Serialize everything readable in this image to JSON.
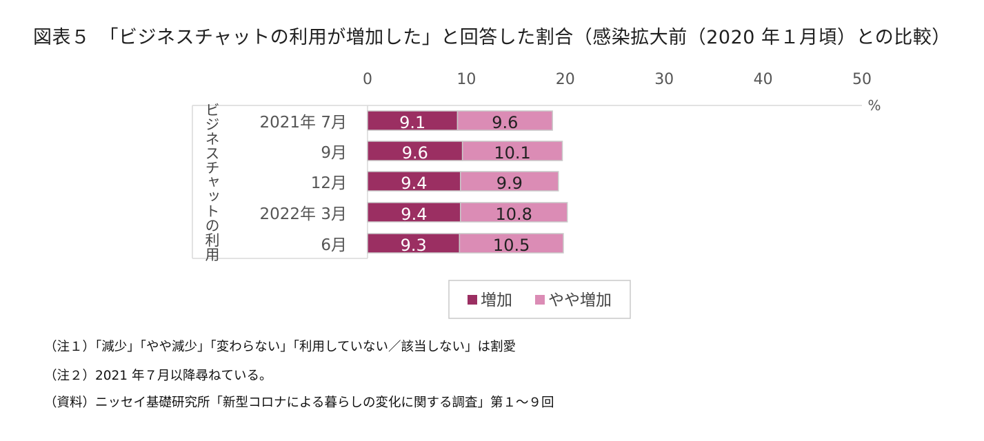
{
  "title": "図表５　「ビジネスチャットの利用が増加した」と回答した割合（感染拡大前（2020 年１月頃）との比較）",
  "notes": [
    "（注１）「減少」「やや減少」「変わらない」「利用していない／該当しない」は割愛",
    "（注２）2021 年７月以降尋ねている。",
    "（資料）ニッセイ基礎研究所「新型コロナによる暮らしの変化に関する調査」第１～９回"
  ],
  "chart_data": {
    "type": "bar",
    "orientation": "horizontal",
    "stacked": true,
    "group_label": "ビジネスチャットの利用",
    "categories": [
      "2021年 7月",
      "9月",
      "12月",
      "2022年 3月",
      "6月"
    ],
    "series": [
      {
        "name": "増加",
        "color": "#9b2f62",
        "values": [
          9.1,
          9.6,
          9.4,
          9.4,
          9.3
        ]
      },
      {
        "name": "やや増加",
        "color": "#db8cb5",
        "values": [
          9.6,
          10.1,
          9.9,
          10.8,
          10.5
        ]
      }
    ],
    "axis": {
      "xlim": [
        0,
        50
      ],
      "ticks": [
        "0",
        "10",
        "20",
        "30",
        "40",
        "50"
      ],
      "unit": "%",
      "position": "top"
    },
    "grid": false,
    "legend": "bottom",
    "data_labels": true
  }
}
